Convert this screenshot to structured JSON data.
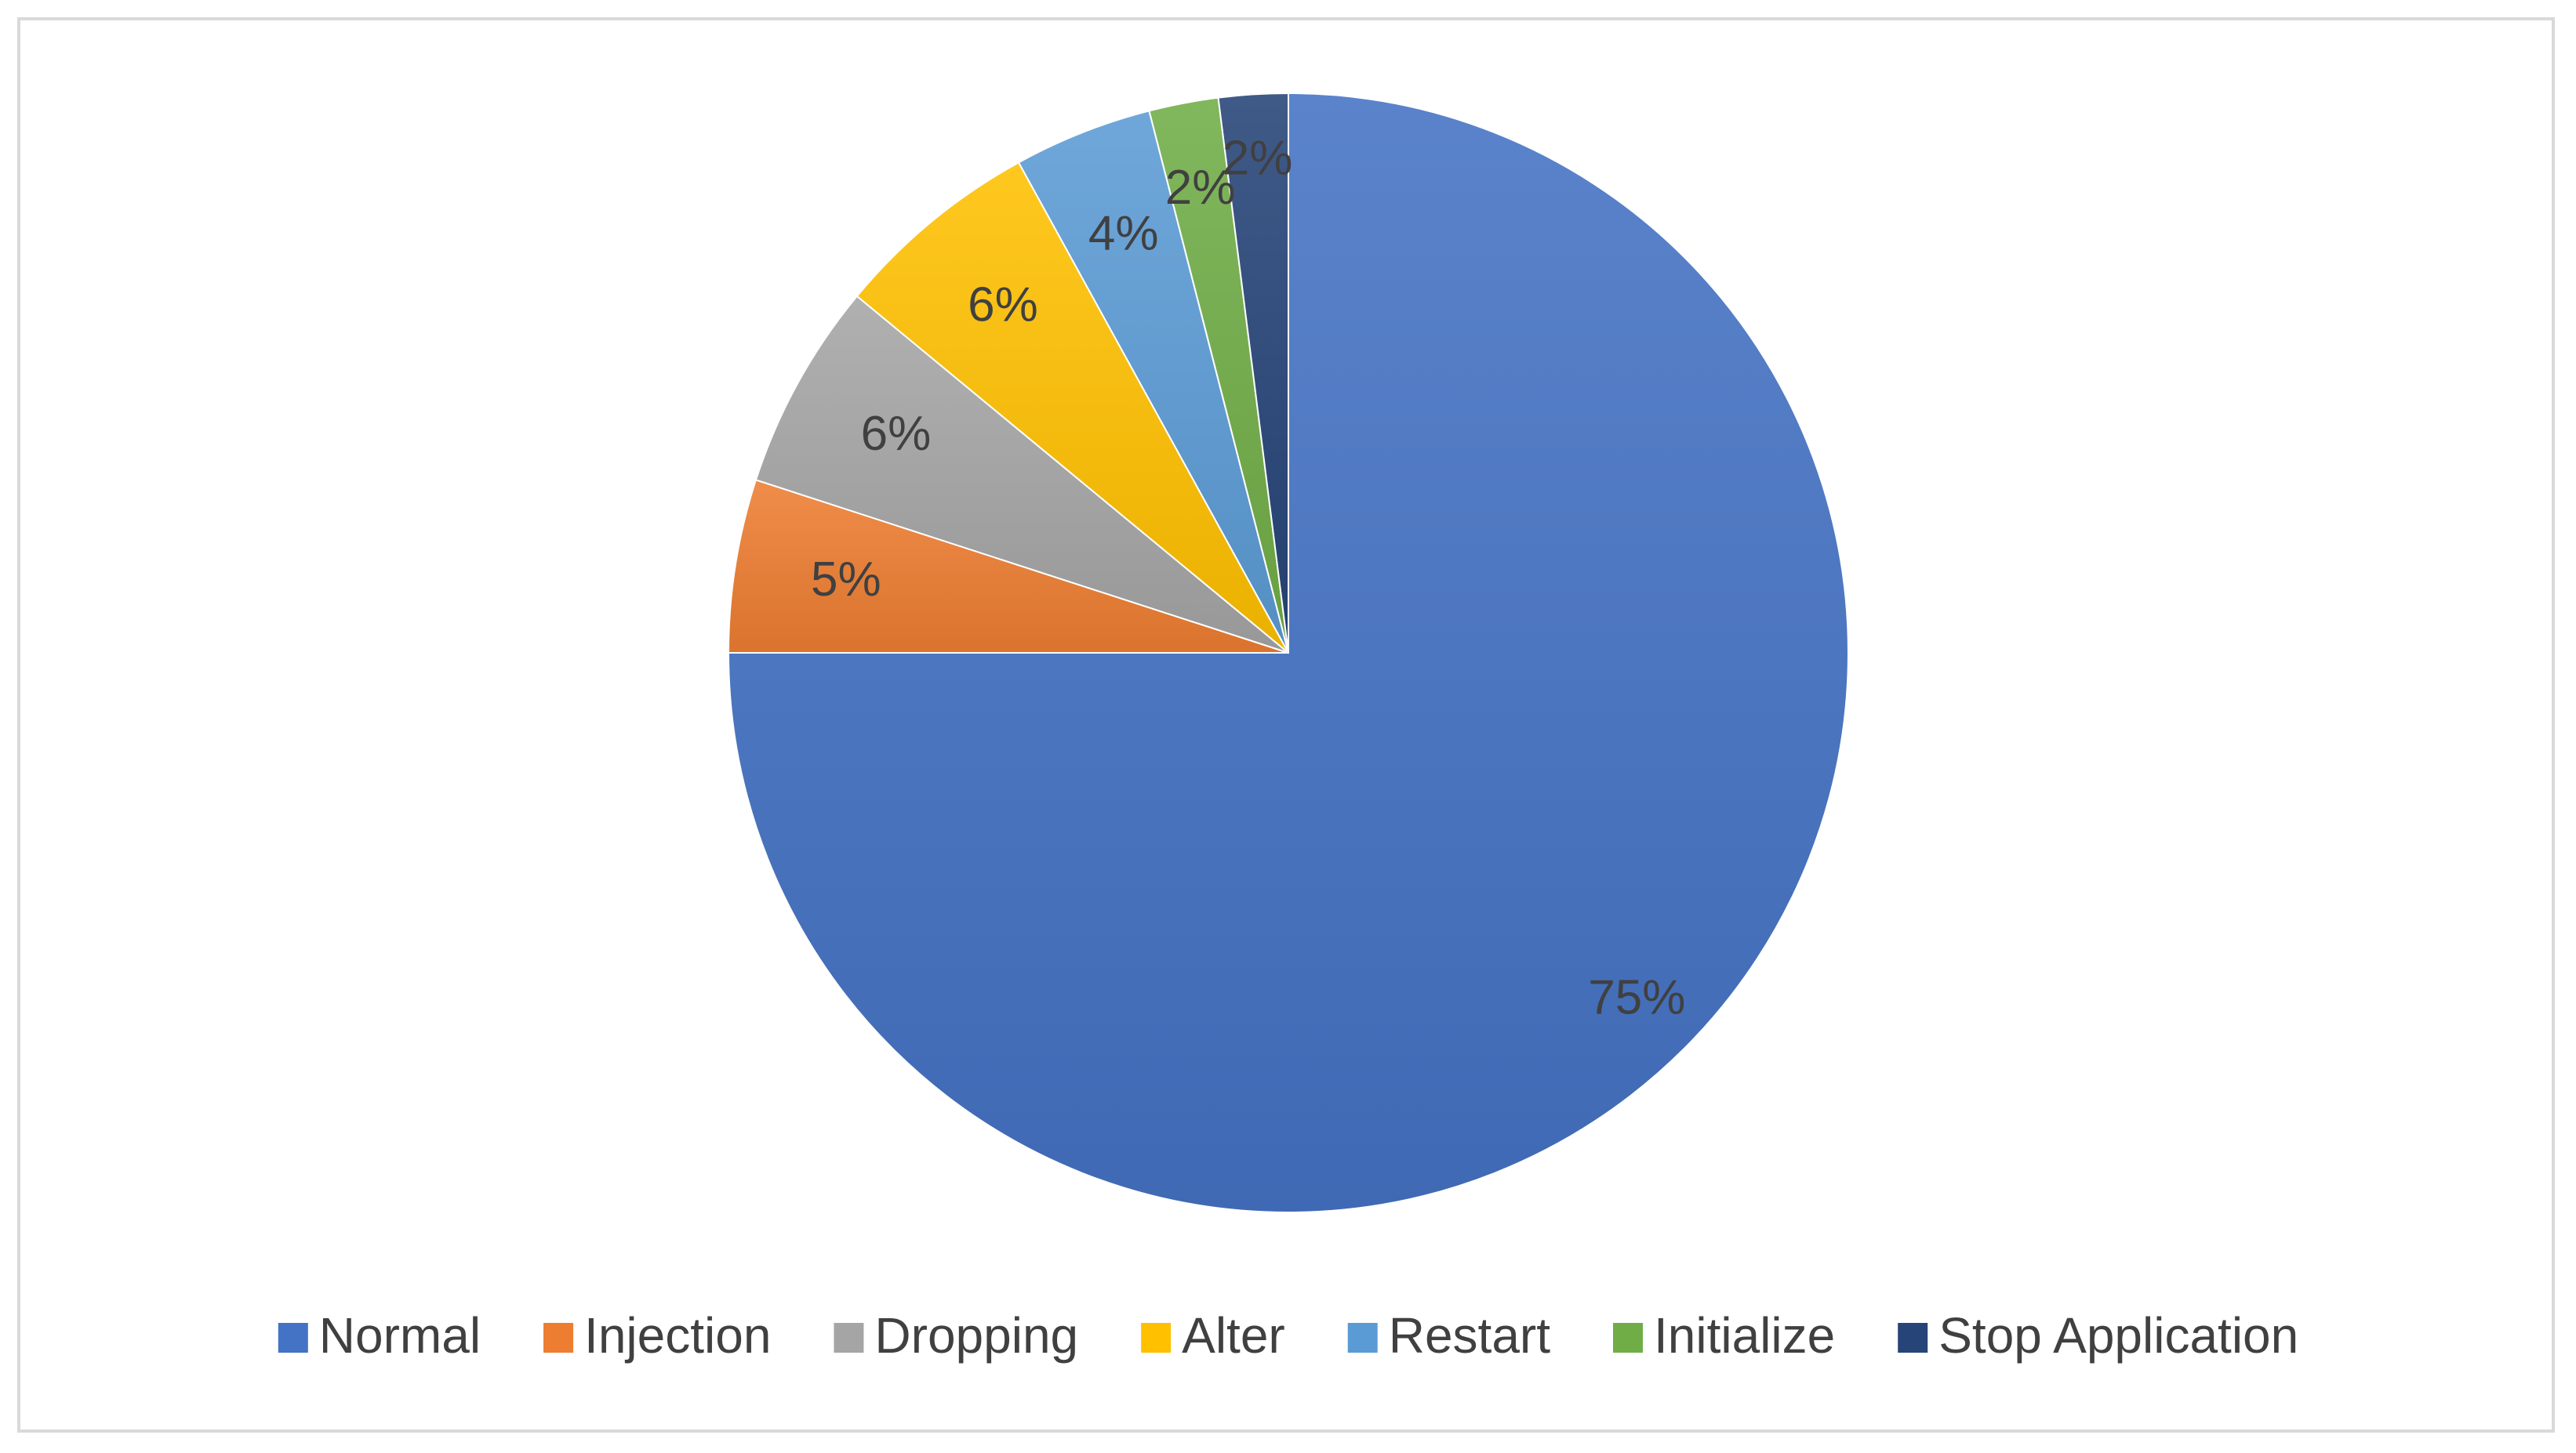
{
  "chart_data": {
    "type": "pie",
    "categories": [
      "Normal",
      "Injection",
      "Dropping",
      "Alter",
      "Restart",
      "Initialize",
      "Stop Application"
    ],
    "values": [
      75,
      5,
      6,
      6,
      4,
      2,
      2
    ],
    "data_labels": [
      "75%",
      "5%",
      "6%",
      "6%",
      "4%",
      "2%",
      "2%"
    ],
    "colors": [
      "#4472c4",
      "#ed7d31",
      "#a5a5a5",
      "#ffc000",
      "#5b9bd5",
      "#70ad47",
      "#264478"
    ],
    "legend_position": "bottom",
    "start": "12 o'clock",
    "direction": "clockwise"
  }
}
